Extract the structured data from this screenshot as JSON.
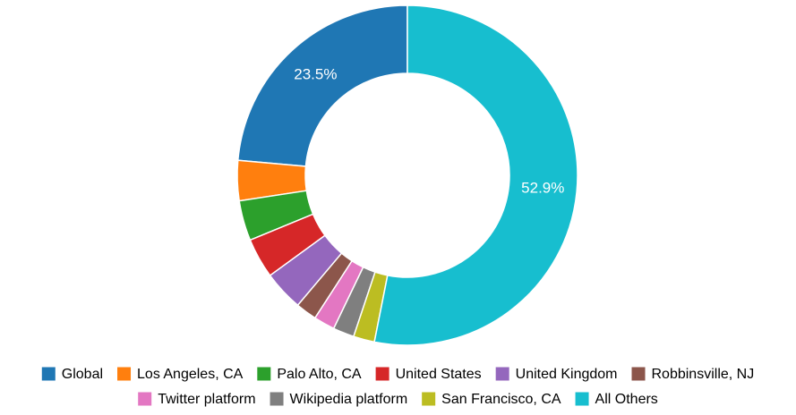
{
  "chart_data": {
    "type": "pie",
    "variant": "donut",
    "title": "",
    "categories": [
      "Global",
      "Los Angeles, CA",
      "Palo Alto, CA",
      "United States",
      "United Kingdom",
      "Robbinsville, NJ",
      "Twitter platform",
      "Wikipedia platform",
      "San Francisco, CA",
      "All Others"
    ],
    "values": [
      23.5,
      3.8,
      3.8,
      3.8,
      3.8,
      2.0,
      2.0,
      2.0,
      2.0,
      52.9
    ],
    "value_labels": [
      "23.5%",
      "",
      "",
      "",
      "",
      "",
      "",
      "",
      "",
      "52.9%"
    ],
    "colors": [
      "#1f77b4",
      "#ff7f0e",
      "#2ca02c",
      "#d62728",
      "#9467bd",
      "#8c564b",
      "#e377c2",
      "#7f7f7f",
      "#bcbd22",
      "#17becf"
    ],
    "legend_position": "bottom",
    "start_angle": "top, counter-clockwise"
  }
}
